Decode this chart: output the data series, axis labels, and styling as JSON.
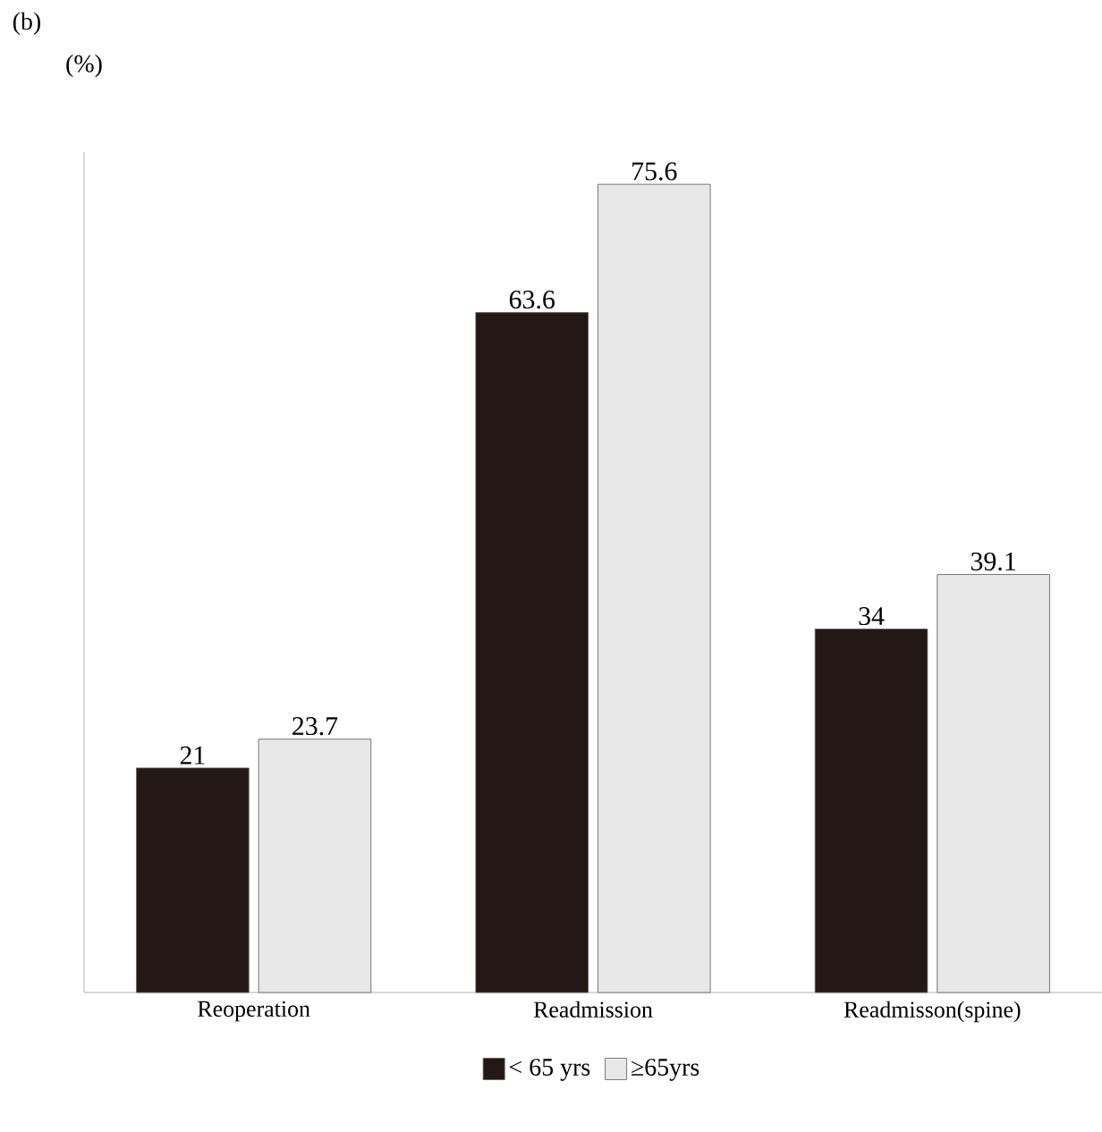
{
  "chart_data": {
    "type": "bar",
    "title": "(b)",
    "ylabel": "(%)",
    "categories": [
      "Reoperation",
      "Readmission",
      "Readmisson(spine)"
    ],
    "series": [
      {
        "name": "< 65 yrs",
        "color": "#231815",
        "values": [
          21,
          63.6,
          34
        ]
      },
      {
        "name": "≥65yrs",
        "color": "#e8e8e8",
        "values": [
          23.7,
          75.6,
          39.1
        ]
      }
    ],
    "relative": false,
    "data_labels": true,
    "legend": "bottom"
  }
}
